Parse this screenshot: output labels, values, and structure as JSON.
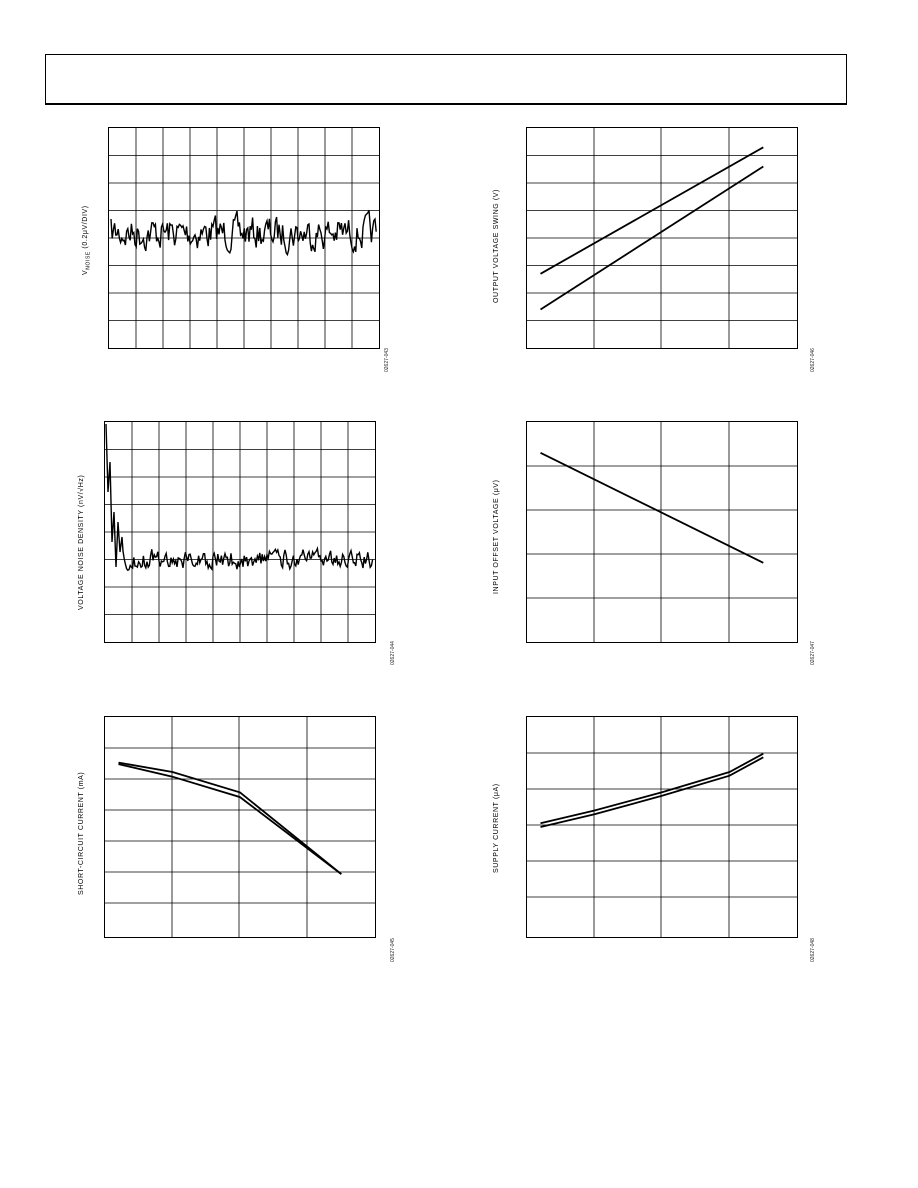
{
  "chart_data": [
    {
      "id": "noise-time",
      "type": "line",
      "ylabel": "V NOISE (0.2μV/DIV)",
      "figure_id": "02627-043",
      "grid": true,
      "x": [
        0,
        1,
        2,
        3,
        4,
        5,
        6,
        7,
        8,
        9,
        10
      ],
      "series": [
        {
          "values": [
            0,
            0.05,
            0.1,
            -0.05,
            0.15,
            0.0,
            -0.1,
            0.05,
            0.1,
            -0.05,
            0.1
          ]
        }
      ]
    },
    {
      "id": "output-swing",
      "type": "line",
      "ylabel": "OUTPUT VOLTAGE SWING (V)",
      "figure_id": "02627-046",
      "grid": true,
      "xlim": [
        0,
        4
      ],
      "ylim": [
        0,
        8
      ],
      "series": [
        {
          "x": [
            0.2,
            3.5
          ],
          "values": [
            2.7,
            7.3
          ]
        },
        {
          "x": [
            0.2,
            3.5
          ],
          "values": [
            1.4,
            6.6
          ]
        }
      ]
    },
    {
      "id": "noise-density",
      "type": "line",
      "ylabel": "VOLTAGE NOISE DENSITY (nV/√Hz)",
      "figure_id": "02627-044",
      "grid": true
    },
    {
      "id": "input-offset",
      "type": "line",
      "ylabel": "INPUT OFFSET VOLTAGE (μV)",
      "figure_id": "02627-047",
      "grid": true,
      "xlim": [
        0,
        4
      ],
      "ylim": [
        0,
        5
      ],
      "series": [
        {
          "x": [
            0.2,
            3.5
          ],
          "values": [
            4.3,
            1.8
          ]
        }
      ]
    },
    {
      "id": "short-circuit",
      "type": "line",
      "ylabel": "SHORT-CIRCUIT CURRENT (mA)",
      "figure_id": "02627-045",
      "grid": true,
      "xlim": [
        0,
        4
      ],
      "ylim": [
        0,
        7
      ],
      "series": [
        {
          "x": [
            0.2,
            1.0,
            2.0,
            3.5
          ],
          "values": [
            5.55,
            5.25,
            4.6,
            2.0
          ]
        },
        {
          "x": [
            0.2,
            1.0,
            2.0,
            3.5
          ],
          "values": [
            5.5,
            5.1,
            4.45,
            2.0
          ]
        }
      ]
    },
    {
      "id": "supply-current",
      "type": "line",
      "ylabel": "SUPPLY CURRENT (μA)",
      "figure_id": "02627-048",
      "grid": true,
      "xlim": [
        0,
        4
      ],
      "ylim": [
        0,
        6
      ],
      "series": [
        {
          "x": [
            0.2,
            1.0,
            2.0,
            3.0,
            3.5
          ],
          "values": [
            3.1,
            3.45,
            3.95,
            4.5,
            5.0
          ]
        },
        {
          "x": [
            0.2,
            1.0,
            2.0,
            3.0,
            3.5
          ],
          "values": [
            3.0,
            3.35,
            3.85,
            4.4,
            4.9
          ]
        }
      ]
    }
  ]
}
